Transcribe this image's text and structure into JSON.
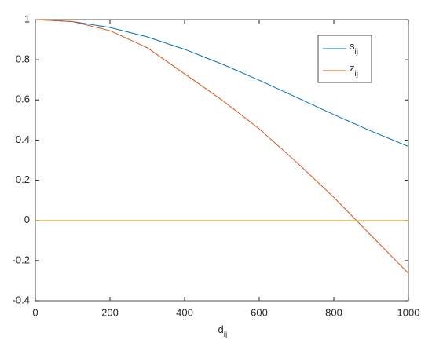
{
  "chart_data": {
    "type": "line",
    "x_label": {
      "text": "d",
      "sub": "ij"
    },
    "x": [
      0,
      100,
      200,
      300,
      400,
      500,
      600,
      700,
      800,
      900,
      1000
    ],
    "series": [
      {
        "name": "s",
        "name_sub": "ij",
        "color": "#0072bd",
        "values": [
          1,
          0.99,
          0.961,
          0.914,
          0.852,
          0.779,
          0.698,
          0.613,
          0.527,
          0.445,
          0.368
        ]
      },
      {
        "name": "z",
        "name_sub": "ij",
        "color": "#d95319",
        "values": [
          1,
          0.99,
          0.945,
          0.86,
          0.73,
          0.6,
          0.456,
          0.29,
          0.115,
          -0.075,
          -0.264
        ]
      },
      {
        "color": "#edb120",
        "values": [
          0,
          0,
          0,
          0,
          0,
          0,
          0,
          0,
          0,
          0,
          0
        ]
      }
    ],
    "xlim": [
      0,
      1000
    ],
    "xticks": [
      0,
      200,
      400,
      600,
      800,
      1000
    ],
    "ylim": [
      -0.4,
      1
    ],
    "yticks": [
      -0.4,
      -0.2,
      0,
      0.2,
      0.4,
      0.6,
      0.8,
      1
    ],
    "grid": false,
    "legend": "upper-right"
  }
}
